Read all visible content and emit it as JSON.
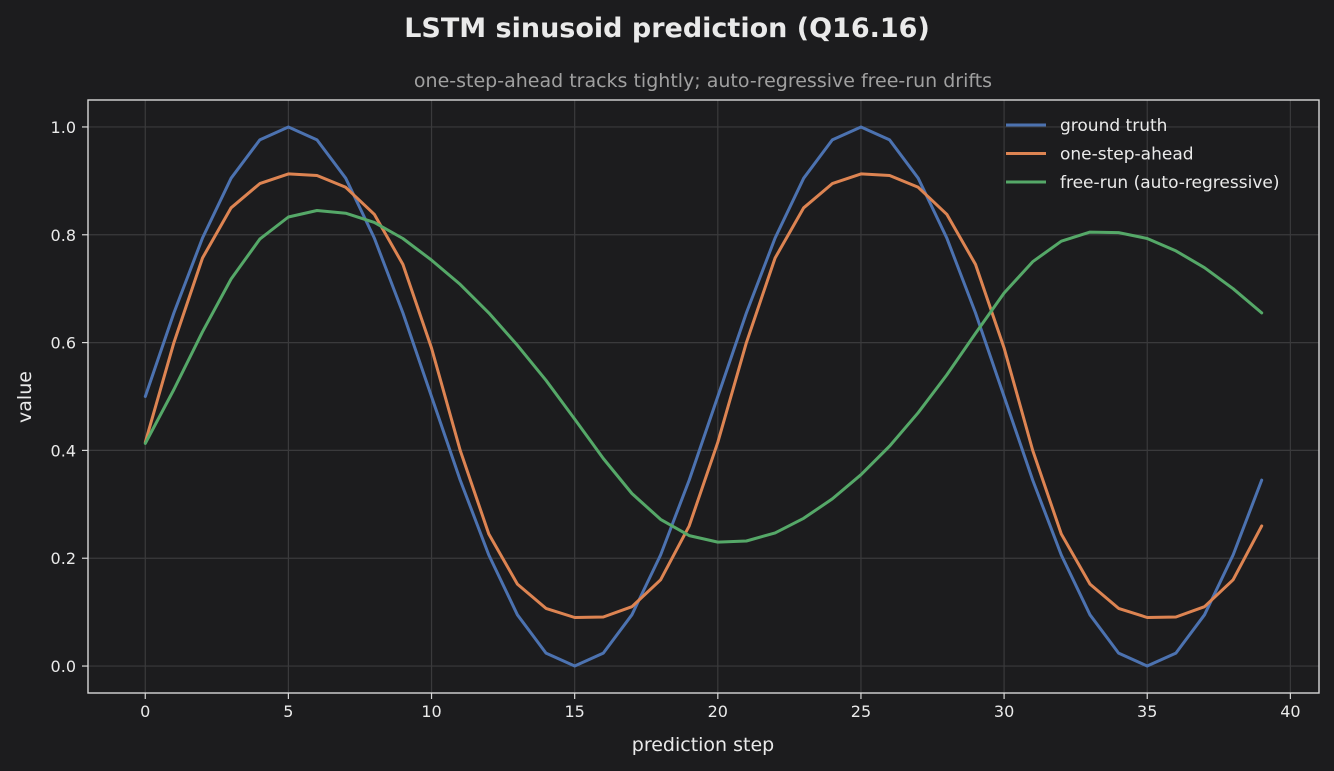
{
  "chart_data": {
    "type": "line",
    "title": "LSTM sinusoid prediction (Q16.16)",
    "subtitle": "one-step-ahead tracks tightly; auto-regressive free-run drifts",
    "xlabel": "prediction step",
    "ylabel": "value",
    "xlim": [
      -2,
      41
    ],
    "ylim": [
      -0.05,
      1.05
    ],
    "xticks": [
      0,
      5,
      10,
      15,
      20,
      25,
      30,
      35,
      40
    ],
    "yticks": [
      0.0,
      0.2,
      0.4,
      0.6,
      0.8,
      1.0
    ],
    "xtick_labels": [
      "0",
      "5",
      "10",
      "15",
      "20",
      "25",
      "30",
      "35",
      "40"
    ],
    "ytick_labels": [
      "0.0",
      "0.2",
      "0.4",
      "0.6",
      "0.8",
      "1.0"
    ],
    "grid": true,
    "legend_position": "top-right",
    "x": [
      0,
      1,
      2,
      3,
      4,
      5,
      6,
      7,
      8,
      9,
      10,
      11,
      12,
      13,
      14,
      15,
      16,
      17,
      18,
      19,
      20,
      21,
      22,
      23,
      24,
      25,
      26,
      27,
      28,
      29,
      30,
      31,
      32,
      33,
      34,
      35,
      36,
      37,
      38,
      39
    ],
    "series": [
      {
        "name": "ground truth",
        "color": "#4c72b0",
        "values": [
          0.5,
          0.655,
          0.794,
          0.905,
          0.976,
          1.0,
          0.976,
          0.905,
          0.794,
          0.655,
          0.5,
          0.345,
          0.206,
          0.095,
          0.024,
          0.0,
          0.024,
          0.095,
          0.206,
          0.345,
          0.5,
          0.655,
          0.794,
          0.905,
          0.976,
          1.0,
          0.976,
          0.905,
          0.794,
          0.655,
          0.5,
          0.345,
          0.206,
          0.095,
          0.024,
          0.0,
          0.024,
          0.095,
          0.206,
          0.345
        ]
      },
      {
        "name": "one-step-ahead",
        "color": "#dd8452",
        "values": [
          0.415,
          0.6,
          0.757,
          0.85,
          0.895,
          0.913,
          0.91,
          0.888,
          0.838,
          0.745,
          0.59,
          0.4,
          0.245,
          0.152,
          0.107,
          0.09,
          0.091,
          0.11,
          0.16,
          0.26,
          0.415,
          0.6,
          0.757,
          0.85,
          0.895,
          0.913,
          0.91,
          0.888,
          0.838,
          0.745,
          0.59,
          0.4,
          0.245,
          0.152,
          0.107,
          0.09,
          0.091,
          0.11,
          0.16,
          0.26
        ]
      },
      {
        "name": "free-run (auto-regressive)",
        "color": "#55a868",
        "values": [
          0.413,
          0.513,
          0.62,
          0.718,
          0.792,
          0.833,
          0.845,
          0.84,
          0.823,
          0.793,
          0.753,
          0.708,
          0.655,
          0.595,
          0.53,
          0.458,
          0.385,
          0.32,
          0.272,
          0.242,
          0.23,
          0.232,
          0.247,
          0.274,
          0.31,
          0.355,
          0.408,
          0.47,
          0.54,
          0.617,
          0.692,
          0.75,
          0.788,
          0.805,
          0.804,
          0.793,
          0.77,
          0.739,
          0.7,
          0.655
        ]
      }
    ]
  }
}
